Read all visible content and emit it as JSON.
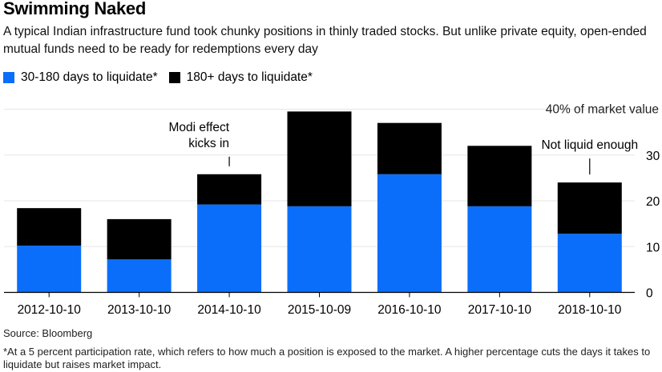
{
  "title": "Swimming Naked",
  "subtitle": "A typical Indian infrastructure fund took chunky positions in thinly traded stocks. But unlike private equity, open-ended mutual funds need to be ready for redemptions every day",
  "source": "Source: Bloomberg",
  "footnote": "*At a 5 percent participation rate, which refers to how much a position is exposed to the market. A higher percentage cuts the days it takes to liquidate but raises market impact.",
  "chart_data": {
    "type": "bar",
    "stacked": true,
    "categories": [
      "2012-10-10",
      "2013-10-10",
      "2014-10-10",
      "2015-10-09",
      "2016-10-10",
      "2017-10-10",
      "2018-10-10"
    ],
    "series": [
      {
        "name": "30-180 days to liquidate*",
        "color": "#0A6EFA",
        "values": [
          10.2,
          7.2,
          19.2,
          18.8,
          25.8,
          18.8,
          12.8
        ]
      },
      {
        "name": "180+ days to liquidate*",
        "color": "#000000",
        "values": [
          8.2,
          8.8,
          6.6,
          20.7,
          11.2,
          13.2,
          11.2
        ]
      }
    ],
    "ylabel": "40% of market value",
    "yticks": [
      "0",
      "10",
      "20",
      "30"
    ],
    "ylim": [
      0,
      40
    ],
    "grid": true,
    "legend": "top-left",
    "annotations": [
      {
        "text_lines": [
          "Modi effect",
          "kicks in"
        ],
        "category": "2014-10-10"
      },
      {
        "text_lines": [
          "Not liquid enough"
        ],
        "category": "2018-10-10"
      }
    ]
  }
}
